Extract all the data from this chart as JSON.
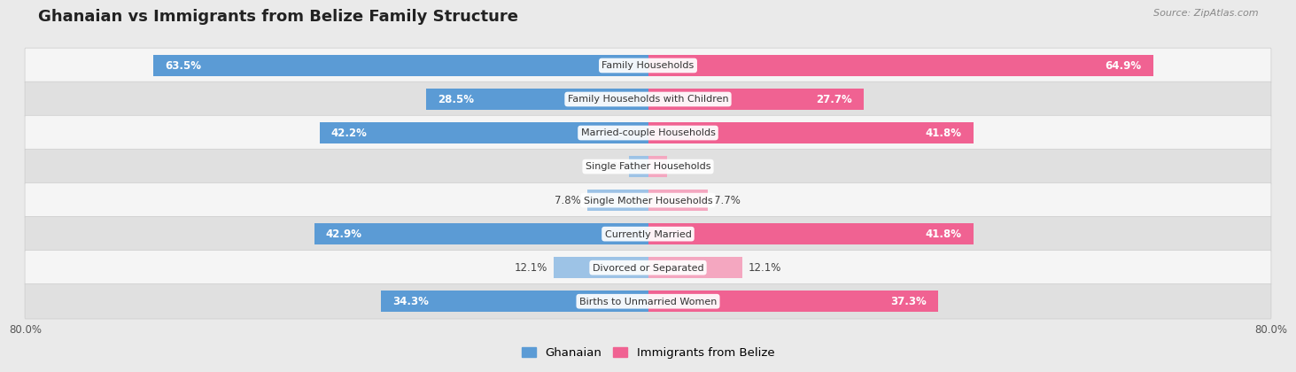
{
  "title": "Ghanaian vs Immigrants from Belize Family Structure",
  "source": "Source: ZipAtlas.com",
  "categories": [
    "Family Households",
    "Family Households with Children",
    "Married-couple Households",
    "Single Father Households",
    "Single Mother Households",
    "Currently Married",
    "Divorced or Separated",
    "Births to Unmarried Women"
  ],
  "ghanaian_values": [
    63.5,
    28.5,
    42.2,
    2.4,
    7.8,
    42.9,
    12.1,
    34.3
  ],
  "belize_values": [
    64.9,
    27.7,
    41.8,
    2.5,
    7.7,
    41.8,
    12.1,
    37.3
  ],
  "ghanaian_color_dark": "#5b9bd5",
  "ghanaian_color_light": "#9dc3e6",
  "belize_color_dark": "#f06292",
  "belize_color_light": "#f4a7c0",
  "ghanaian_label": "Ghanaian",
  "belize_label": "Immigrants from Belize",
  "x_max": 80.0,
  "background_color": "#eaeaea",
  "row_colors": [
    "#f5f5f5",
    "#e0e0e0"
  ],
  "title_fontsize": 13,
  "bar_label_fontsize": 8.5,
  "cat_label_fontsize": 8.0
}
